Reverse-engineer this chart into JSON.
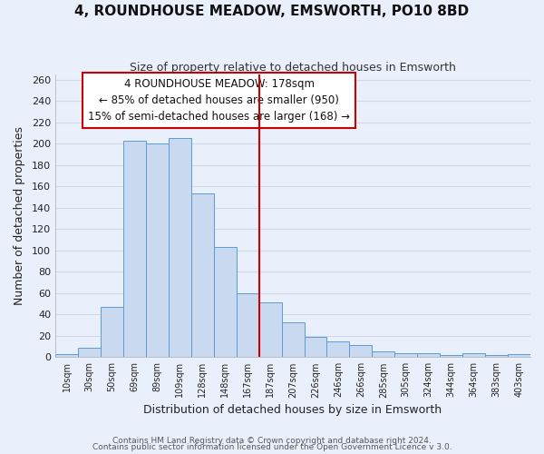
{
  "title": "4, ROUNDHOUSE MEADOW, EMSWORTH, PO10 8BD",
  "subtitle": "Size of property relative to detached houses in Emsworth",
  "xlabel": "Distribution of detached houses by size in Emsworth",
  "ylabel": "Number of detached properties",
  "bar_labels": [
    "10sqm",
    "30sqm",
    "50sqm",
    "69sqm",
    "89sqm",
    "109sqm",
    "128sqm",
    "148sqm",
    "167sqm",
    "187sqm",
    "207sqm",
    "226sqm",
    "246sqm",
    "266sqm",
    "285sqm",
    "305sqm",
    "324sqm",
    "344sqm",
    "364sqm",
    "383sqm",
    "403sqm"
  ],
  "bar_values": [
    3,
    9,
    47,
    203,
    200,
    205,
    153,
    103,
    60,
    51,
    33,
    19,
    15,
    11,
    5,
    4,
    4,
    2,
    4,
    2,
    3
  ],
  "bar_color": "#c9d9f0",
  "bar_edge_color": "#5b9bd5",
  "grid_color": "#d0d8e8",
  "background_color": "#eaf0fb",
  "vline_x": 8.5,
  "vline_color": "#cc0000",
  "annotation_line1": "4 ROUNDHOUSE MEADOW: 178sqm",
  "annotation_line2": "← 85% of detached houses are smaller (950)",
  "annotation_line3": "15% of semi-detached houses are larger (168) →",
  "annotation_box_color": "#cc0000",
  "ylim": [
    0,
    265
  ],
  "yticks": [
    0,
    20,
    40,
    60,
    80,
    100,
    120,
    140,
    160,
    180,
    200,
    220,
    240,
    260
  ],
  "footer1": "Contains HM Land Registry data © Crown copyright and database right 2024.",
  "footer2": "Contains public sector information licensed under the Open Government Licence v 3.0."
}
